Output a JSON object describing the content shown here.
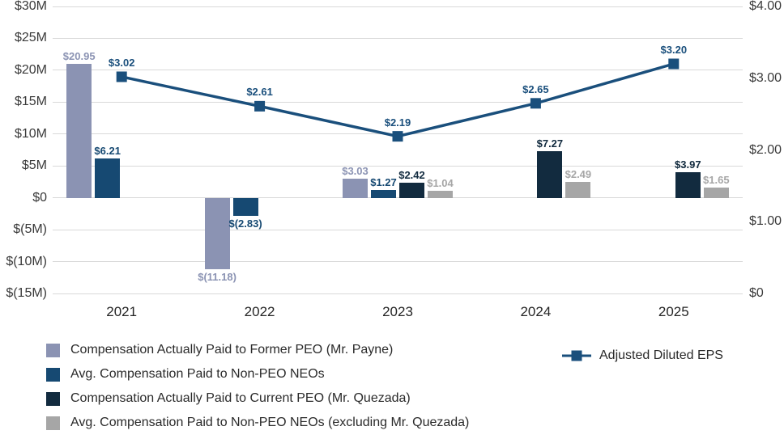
{
  "chart_data": {
    "type": "bar",
    "subtype": "grouped-bars-with-line-overlay",
    "title": "",
    "categories": [
      "2021",
      "2022",
      "2023",
      "2024",
      "2025"
    ],
    "bar_series": [
      {
        "name": "Compensation Actually Paid to Former PEO (Mr. Payne)",
        "color": "#8B93B3",
        "values": [
          20.95,
          -11.18,
          3.03,
          null,
          null
        ],
        "labels": [
          "$20.95",
          "$(11.18)",
          "$3.03",
          null,
          null
        ]
      },
      {
        "name": "Avg. Compensation Paid to Non-PEO NEOs",
        "color": "#164972",
        "values": [
          6.21,
          -2.83,
          1.27,
          null,
          null
        ],
        "labels": [
          "$6.21",
          "$(2.83)",
          "$1.27",
          null,
          null
        ]
      },
      {
        "name": "Compensation Actually Paid to Current PEO (Mr. Quezada)",
        "color": "#122B3F",
        "values": [
          null,
          null,
          2.42,
          7.27,
          3.97
        ],
        "labels": [
          null,
          null,
          "$2.42",
          "$7.27",
          "$3.97"
        ]
      },
      {
        "name": "Avg. Compensation Paid to Non-PEO NEOs (excluding Mr. Quezada)",
        "color": "#A6A6A6",
        "values": [
          null,
          null,
          1.04,
          2.49,
          1.65
        ],
        "labels": [
          null,
          null,
          "$1.04",
          "$2.49",
          "$1.65"
        ]
      }
    ],
    "line_series": {
      "name": "Adjusted Diluted EPS",
      "color": "#1A4F7C",
      "values": [
        3.02,
        2.61,
        2.19,
        2.65,
        3.2
      ],
      "labels": [
        "$3.02",
        "$2.61",
        "$2.19",
        "$2.65",
        "$3.20"
      ]
    },
    "left_axis": {
      "unit": "millions_usd",
      "min": -15,
      "max": 30,
      "tick_step": 5,
      "tick_labels": [
        "$30M",
        "$25M",
        "$20M",
        "$15M",
        "$10M",
        "$5M",
        "$0",
        "$(5M)",
        "$(10M)",
        "$(15M)"
      ]
    },
    "right_axis": {
      "unit": "usd_per_share",
      "min": 0,
      "max": 4,
      "tick_step": 1,
      "tick_labels": [
        "$4.00",
        "$3.00",
        "$2.00",
        "$1.00",
        "$0"
      ]
    },
    "grid": true,
    "legend_position": "bottom"
  },
  "colors": {
    "background": "#FFFFFF",
    "gridline": "#D9D9D9",
    "axis_text": "#3A3A3A",
    "legend_text": "#2A2A2A"
  }
}
